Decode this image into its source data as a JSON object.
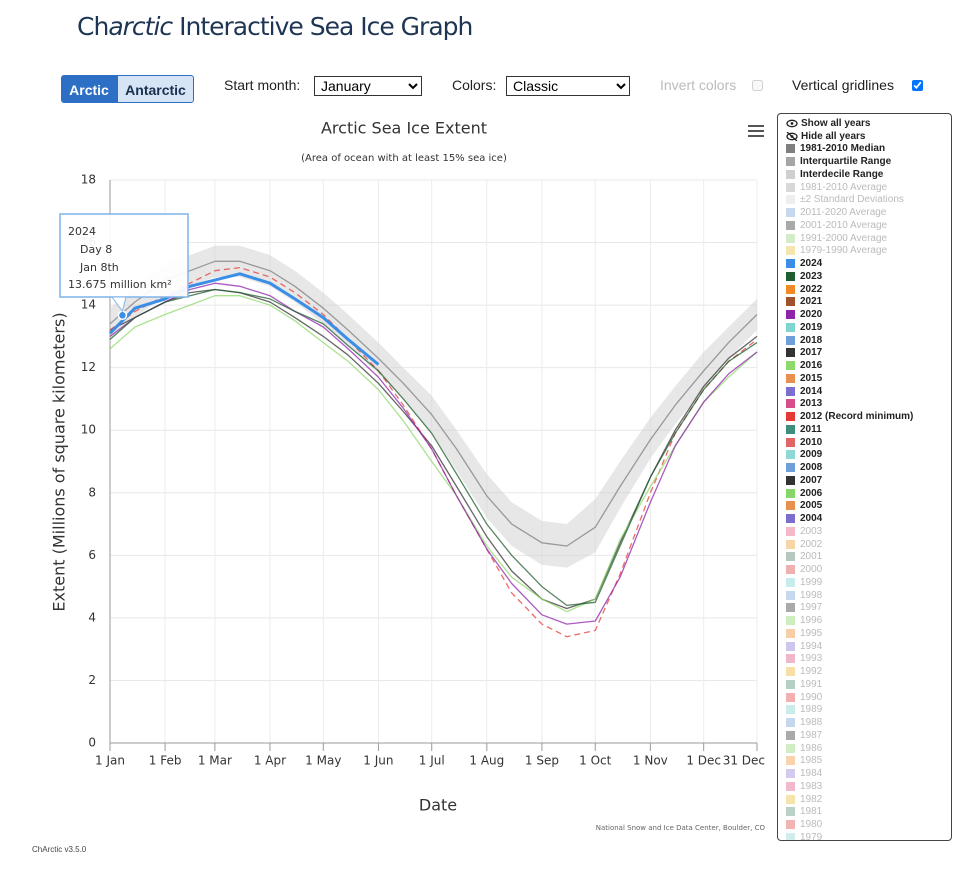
{
  "header": {
    "title": [
      "Ch",
      "arctic",
      " Interactive Sea Ice Graph"
    ]
  },
  "controls": {
    "hemispheres": [
      "Arctic",
      "Antarctic"
    ],
    "active_hemisphere": 0,
    "start_month_label": "Start month:",
    "start_month": "January",
    "colors_label": "Colors:",
    "colors": "Classic",
    "invert_colors": {
      "label": "Invert colors",
      "checked": false,
      "disabled": true
    },
    "vertical_gridlines": {
      "label": "Vertical gridlines",
      "checked": true
    }
  },
  "chart_data": {
    "type": "line",
    "title": "Arctic Sea Ice Extent",
    "subtitle": "(Area of ocean with at least 15% sea ice)",
    "x_label": "Date",
    "y_label": "Extent (Millions of square kilometers)",
    "credit": "National Snow and Ice Data Center, Boulder, CO",
    "xlim": [
      1,
      365
    ],
    "ylim": [
      0,
      18
    ],
    "grid": true,
    "xticks": [
      {
        "value": 1,
        "label": "1 Jan"
      },
      {
        "value": 32,
        "label": "1 Feb"
      },
      {
        "value": 60,
        "label": "1 Mar"
      },
      {
        "value": 91,
        "label": "1 Apr"
      },
      {
        "value": 121,
        "label": "1 May"
      },
      {
        "value": 152,
        "label": "1 Jun"
      },
      {
        "value": 182,
        "label": "1 Jul"
      },
      {
        "value": 213,
        "label": "1 Aug"
      },
      {
        "value": 244,
        "label": "1 Sep"
      },
      {
        "value": 274,
        "label": "1 Oct"
      },
      {
        "value": 305,
        "label": "1 Nov"
      },
      {
        "value": 335,
        "label": "1 Dec"
      },
      {
        "value": 365,
        "label": "31 Dec"
      }
    ],
    "yticks": [
      0,
      2,
      4,
      6,
      8,
      10,
      12,
      14,
      16,
      18
    ],
    "x": [
      1,
      15,
      32,
      46,
      60,
      74,
      91,
      105,
      121,
      135,
      152,
      166,
      182,
      196,
      213,
      227,
      244,
      258,
      274,
      288,
      305,
      319,
      335,
      349,
      365
    ],
    "legend_controls": [
      "Show all years",
      "Hide all years"
    ],
    "series": [
      {
        "name": "1981-2010 Median",
        "color": "#7f7f7f",
        "values": [
          13.4,
          14.1,
          14.8,
          15.1,
          15.4,
          15.4,
          15.1,
          14.6,
          13.9,
          13.2,
          12.3,
          11.5,
          10.5,
          9.4,
          7.9,
          7.0,
          6.4,
          6.3,
          6.9,
          8.2,
          9.7,
          10.8,
          11.9,
          12.8,
          13.7
        ]
      },
      {
        "name": "Interquartile Range",
        "color": "#a6a6a6"
      },
      {
        "name": "Interdecile Range",
        "color": "#cfcfcf",
        "low": [
          12.9,
          13.6,
          14.3,
          14.6,
          14.9,
          14.9,
          14.6,
          14.1,
          13.4,
          12.7,
          11.8,
          11.0,
          9.9,
          8.7,
          7.2,
          6.3,
          5.7,
          5.6,
          6.1,
          7.5,
          9.1,
          10.2,
          11.3,
          12.3,
          13.2
        ],
        "high": [
          13.9,
          14.6,
          15.3,
          15.6,
          15.9,
          15.9,
          15.6,
          15.1,
          14.4,
          13.7,
          12.8,
          12.0,
          11.1,
          10.0,
          8.6,
          7.7,
          7.1,
          7.0,
          7.8,
          9.0,
          10.4,
          11.4,
          12.5,
          13.3,
          14.2
        ]
      },
      {
        "name": "1981-2010 Average",
        "color": "#d8d8d8",
        "muted": true
      },
      {
        "name": "±2 Standard Deviations",
        "color": "#eeeeee",
        "muted": true
      },
      {
        "name": "2011-2020 Average",
        "color": "#c6d8f0",
        "muted": true
      },
      {
        "name": "2001-2010 Average",
        "color": "#a9a9a9",
        "muted": true
      },
      {
        "name": "1991-2000 Average",
        "color": "#d4ecc8",
        "muted": true
      },
      {
        "name": "1979-1990 Average",
        "color": "#f5e6b0",
        "muted": true
      },
      {
        "name": "2024",
        "color": "#3a8ee6",
        "highlight": true,
        "values": [
          13.1,
          13.9,
          14.2,
          14.6,
          14.8,
          15.0,
          14.7,
          14.2,
          13.6,
          12.9,
          12.1,
          null,
          null,
          null,
          null,
          null,
          null,
          null,
          null,
          null,
          null,
          null,
          null,
          null,
          null
        ]
      },
      {
        "name": "2023",
        "color": "#1f5e2e",
        "values": [
          12.9,
          13.6,
          14.1,
          14.3,
          14.5,
          14.4,
          14.2,
          13.8,
          13.4,
          12.7,
          11.9,
          11.0,
          9.9,
          8.6,
          7.0,
          6.0,
          5.0,
          4.4,
          4.5,
          6.3,
          8.5,
          9.9,
          11.3,
          12.2,
          12.8
        ]
      },
      {
        "name": "2022",
        "color": "#f08a24"
      },
      {
        "name": "2021",
        "color": "#a0522d"
      },
      {
        "name": "2020",
        "color": "#8e24aa",
        "values": [
          13.0,
          13.6,
          14.1,
          14.5,
          14.7,
          14.6,
          14.3,
          13.8,
          13.3,
          12.6,
          11.7,
          10.7,
          9.4,
          7.9,
          6.2,
          5.1,
          4.1,
          3.8,
          3.9,
          5.3,
          7.7,
          9.5,
          10.9,
          11.8,
          12.5
        ]
      },
      {
        "name": "2019",
        "color": "#7fd6d0"
      },
      {
        "name": "2018",
        "color": "#6f9fd8"
      },
      {
        "name": "2017",
        "color": "#333333"
      },
      {
        "name": "2016",
        "color": "#8ed96b",
        "values": [
          12.6,
          13.3,
          13.7,
          14.0,
          14.3,
          14.3,
          14.0,
          13.5,
          12.8,
          12.2,
          11.3,
          10.3,
          9.0,
          7.9,
          6.3,
          5.3,
          4.6,
          4.2,
          4.6,
          6.5,
          8.2,
          9.5,
          10.9,
          11.7,
          12.5
        ]
      },
      {
        "name": "2015",
        "color": "#e89050"
      },
      {
        "name": "2014",
        "color": "#7a6fcf"
      },
      {
        "name": "2013",
        "color": "#d64f8a"
      },
      {
        "name": "2012 (Record minimum)",
        "color": "#e53935",
        "dash": true,
        "values": [
          13.2,
          13.8,
          14.3,
          14.7,
          15.1,
          15.2,
          14.9,
          14.4,
          13.7,
          12.9,
          11.9,
          10.8,
          9.4,
          7.9,
          6.2,
          4.8,
          3.8,
          3.4,
          3.6,
          5.4,
          8.0,
          9.9,
          11.3,
          12.2,
          12.9
        ]
      },
      {
        "name": "2011",
        "color": "#3e8e7e"
      },
      {
        "name": "2010",
        "color": "#e06666"
      },
      {
        "name": "2009",
        "color": "#8fd8d8"
      },
      {
        "name": "2008",
        "color": "#6f9fd8"
      },
      {
        "name": "2007",
        "color": "#333333",
        "values": [
          13.2,
          13.6,
          14.1,
          14.4,
          14.5,
          14.4,
          14.1,
          13.6,
          13.0,
          12.4,
          11.5,
          10.6,
          9.5,
          8.2,
          6.6,
          5.5,
          4.6,
          4.3,
          4.6,
          6.4,
          8.5,
          10.0,
          11.4,
          12.3,
          13.0
        ]
      },
      {
        "name": "2006",
        "color": "#86d66a"
      },
      {
        "name": "2005",
        "color": "#e89050"
      },
      {
        "name": "2004",
        "color": "#7a6fcf"
      },
      {
        "name": "2003",
        "color": "#f4b8c8",
        "muted": true
      },
      {
        "name": "2002",
        "color": "#f6d6a6",
        "muted": true
      },
      {
        "name": "2001",
        "color": "#b5c9c0",
        "muted": true
      },
      {
        "name": "2000",
        "color": "#f0b0b0",
        "muted": true
      },
      {
        "name": "1999",
        "color": "#c8ecec",
        "muted": true
      },
      {
        "name": "1998",
        "color": "#c6d8f0",
        "muted": true
      },
      {
        "name": "1997",
        "color": "#aaaaaa",
        "muted": true
      },
      {
        "name": "1996",
        "color": "#cdeebf",
        "muted": true
      },
      {
        "name": "1995",
        "color": "#f6cfa8",
        "muted": true
      },
      {
        "name": "1994",
        "color": "#cfc6ee",
        "muted": true
      },
      {
        "name": "1993",
        "color": "#f0b6cc",
        "muted": true
      },
      {
        "name": "1992",
        "color": "#f6e0a6",
        "muted": true
      },
      {
        "name": "1991",
        "color": "#b5cfc4",
        "muted": true
      },
      {
        "name": "1990",
        "color": "#f2b0b0",
        "muted": true
      },
      {
        "name": "1989",
        "color": "#ccecec",
        "muted": true
      },
      {
        "name": "1988",
        "color": "#c6d8f0",
        "muted": true
      },
      {
        "name": "1987",
        "color": "#aaaaaa",
        "muted": true
      },
      {
        "name": "1986",
        "color": "#d1eec3",
        "muted": true
      },
      {
        "name": "1985",
        "color": "#f8d3ad",
        "muted": true
      },
      {
        "name": "1984",
        "color": "#d3caee",
        "muted": true
      },
      {
        "name": "1983",
        "color": "#f2b8cc",
        "muted": true
      },
      {
        "name": "1982",
        "color": "#f6e4ad",
        "muted": true
      },
      {
        "name": "1981",
        "color": "#b9d1c6",
        "muted": true
      },
      {
        "name": "1980",
        "color": "#f2b3b3",
        "muted": true
      },
      {
        "name": "1979",
        "color": "#d0eeee",
        "muted": true
      }
    ],
    "tooltip": {
      "year": "2024",
      "day": "Day 8",
      "date": "Jan 8th",
      "x": 8,
      "value": 13.675,
      "value_label": "13.675 million km²"
    }
  },
  "footer": {
    "version": "ChArctic v3.5.0"
  }
}
